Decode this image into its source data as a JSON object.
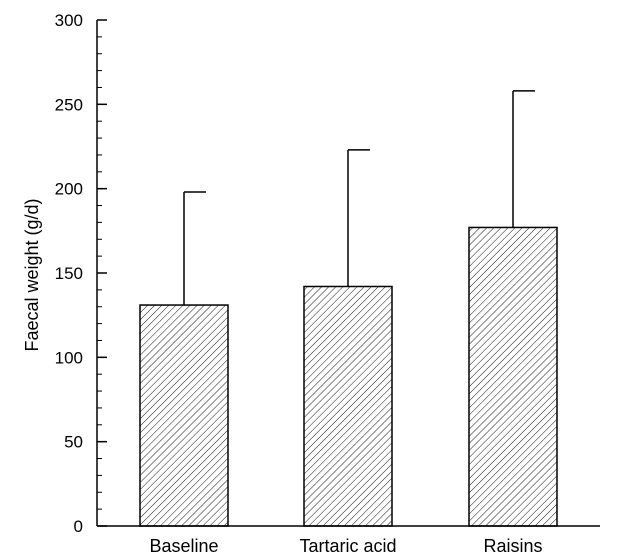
{
  "chart_data": {
    "type": "bar",
    "title": "",
    "xlabel": "",
    "ylabel": "Faecal weight (g/d)",
    "ylim": [
      0,
      300
    ],
    "yticks": [
      0,
      50,
      100,
      150,
      200,
      250,
      300
    ],
    "y_minor_step": 10,
    "categories": [
      "Baseline",
      "Tartaric acid",
      "Raisins"
    ],
    "values": [
      131,
      142,
      177
    ],
    "error_upper": [
      198,
      223,
      258
    ],
    "bar_fill": "hatched-diagonal",
    "bar_stroke": "#000000",
    "grid": false,
    "legend": "none"
  }
}
